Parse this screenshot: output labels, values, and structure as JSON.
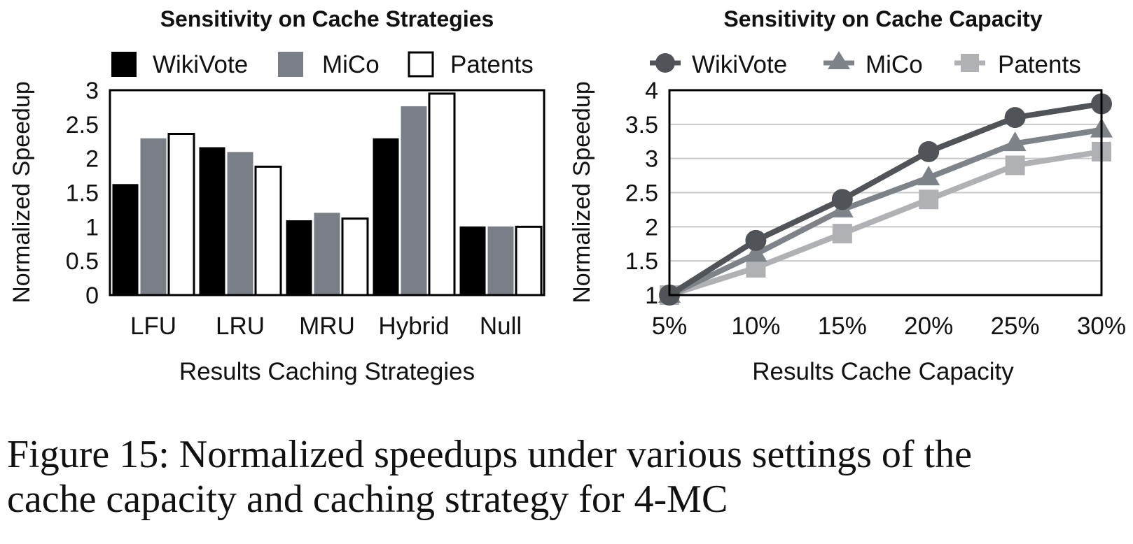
{
  "colors": {
    "wikivote_bar": "#000000",
    "mico_bar": "#7a7f87",
    "patents_bar": "#ffffff",
    "wikivote_line": "#505459",
    "mico_line": "#7e838a",
    "patents_line": "#b0b1b4",
    "grid": "#c8c8c8"
  },
  "chart_data": [
    {
      "type": "bar",
      "title": "Sensitivity on Cache Strategies",
      "xlabel": "Results Caching Strategies",
      "ylabel": "Normalized Speedup",
      "categories": [
        "LFU",
        "LRU",
        "MRU",
        "Hybrid",
        "Null"
      ],
      "ylim": [
        0,
        3
      ],
      "yticks": [
        "0",
        "0.5",
        "1",
        "1.5",
        "2",
        "2.5",
        "3"
      ],
      "grid": false,
      "legend_position": "top",
      "series": [
        {
          "name": "WikiVote",
          "values": [
            1.62,
            2.16,
            1.09,
            2.29,
            1.0
          ]
        },
        {
          "name": "MiCo",
          "values": [
            2.29,
            2.09,
            1.2,
            2.76,
            1.0
          ]
        },
        {
          "name": "Patents",
          "values": [
            2.36,
            1.88,
            1.12,
            2.95,
            1.0
          ]
        }
      ]
    },
    {
      "type": "line",
      "title": "Sensitivity on Cache Capacity",
      "xlabel": "Results Cache Capacity",
      "ylabel": "Normalized Speedup",
      "x": [
        "5%",
        "10%",
        "15%",
        "20%",
        "25%",
        "30%"
      ],
      "ylim": [
        1,
        4
      ],
      "yticks": [
        "1",
        "1.5",
        "2",
        "2.5",
        "3",
        "3.5",
        "4"
      ],
      "grid": true,
      "legend_position": "top",
      "series": [
        {
          "name": "WikiVote",
          "marker": "circle",
          "values": [
            1.0,
            1.8,
            2.4,
            3.1,
            3.6,
            3.8
          ]
        },
        {
          "name": "MiCo",
          "marker": "triangle",
          "values": [
            1.0,
            1.6,
            2.25,
            2.72,
            3.22,
            3.42
          ]
        },
        {
          "name": "Patents",
          "marker": "square",
          "values": [
            1.0,
            1.4,
            1.9,
            2.4,
            2.9,
            3.1
          ]
        }
      ]
    }
  ],
  "caption": {
    "line1": "Figure 15: Normalized speedups under various settings of the",
    "line2": "cache capacity and caching strategy for 4-MC"
  }
}
